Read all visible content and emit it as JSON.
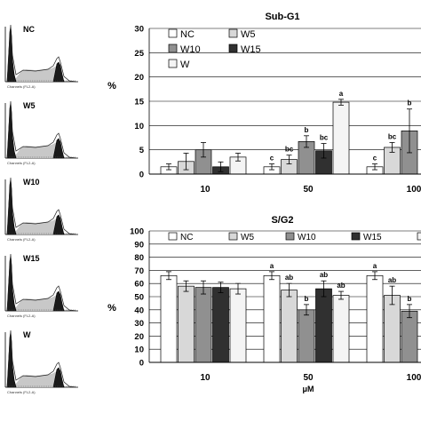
{
  "histograms": [
    {
      "label": "NC",
      "xlabel": "Channels (FL2-A)"
    },
    {
      "label": "W5",
      "xlabel": "Channels (FL2-A)"
    },
    {
      "label": "W10",
      "xlabel": "Channels (FL2-A)"
    },
    {
      "label": "W15",
      "xlabel": "Channels (FL2-A)"
    },
    {
      "label": "W",
      "xlabel": "Channels (FL2-A)"
    }
  ],
  "colors": {
    "NC": "#ffffff",
    "W5": "#d8d8d8",
    "W10": "#909090",
    "W15": "#303030",
    "W": "#f4f4f4",
    "histogram_fill_dark": "#1a1a1a",
    "histogram_fill_light": "#c8c8c8"
  },
  "chart_data": [
    {
      "type": "bar",
      "title": "Sub-G1",
      "ylabel": "%",
      "xlabel": "",
      "ylim": [
        0,
        30
      ],
      "yticks": [
        0,
        5,
        10,
        15,
        20,
        25,
        30
      ],
      "grid": true,
      "legend": "top-left, inside",
      "categories": [
        "10",
        "50",
        "100"
      ],
      "series": [
        {
          "name": "NC",
          "values": [
            1.5,
            1.5,
            1.5
          ],
          "errors": [
            0.6,
            0.6,
            0.6
          ],
          "sig": [
            "",
            "c",
            "c"
          ]
        },
        {
          "name": "W5",
          "values": [
            2.6,
            3.0,
            5.5
          ],
          "errors": [
            1.7,
            0.9,
            1.0
          ],
          "sig": [
            "",
            "bc",
            "bc"
          ]
        },
        {
          "name": "W10",
          "values": [
            5.0,
            6.7,
            8.9
          ],
          "errors": [
            1.5,
            1.2,
            4.5
          ],
          "sig": [
            "",
            "b",
            "b"
          ]
        },
        {
          "name": "W15",
          "values": [
            1.5,
            4.8,
            null
          ],
          "errors": [
            1.0,
            1.5,
            null
          ],
          "sig": [
            "",
            "bc",
            ""
          ]
        },
        {
          "name": "W",
          "values": [
            3.5,
            14.8,
            null
          ],
          "errors": [
            0.8,
            0.6,
            null
          ],
          "sig": [
            "",
            "a",
            ""
          ]
        }
      ],
      "tick_labels_shown": [
        "10",
        "50",
        "100"
      ]
    },
    {
      "type": "bar",
      "title": "S/G2",
      "ylabel": "%",
      "xlabel": "μM",
      "ylim": [
        0,
        100
      ],
      "yticks": [
        0,
        10,
        20,
        30,
        40,
        50,
        60,
        70,
        80,
        90,
        100
      ],
      "grid": true,
      "legend": "top, inside",
      "categories": [
        "10",
        "50",
        "100"
      ],
      "series": [
        {
          "name": "NC",
          "values": [
            66,
            66,
            66
          ],
          "errors": [
            3,
            3,
            3
          ],
          "sig": [
            "",
            "a",
            "a"
          ]
        },
        {
          "name": "W5",
          "values": [
            58,
            55,
            51
          ],
          "errors": [
            4,
            5,
            7
          ],
          "sig": [
            "",
            "ab",
            "ab"
          ]
        },
        {
          "name": "W10",
          "values": [
            57,
            40,
            39
          ],
          "errors": [
            5,
            4,
            5
          ],
          "sig": [
            "",
            "b",
            "b"
          ]
        },
        {
          "name": "W15",
          "values": [
            57,
            56,
            null
          ],
          "errors": [
            4,
            6,
            null
          ],
          "sig": [
            "",
            "ab",
            ""
          ]
        },
        {
          "name": "W",
          "values": [
            56,
            51,
            null
          ],
          "errors": [
            4,
            3,
            null
          ],
          "sig": [
            "",
            "ab",
            ""
          ]
        }
      ],
      "tick_labels_shown": [
        "10",
        "50",
        "100"
      ]
    }
  ]
}
